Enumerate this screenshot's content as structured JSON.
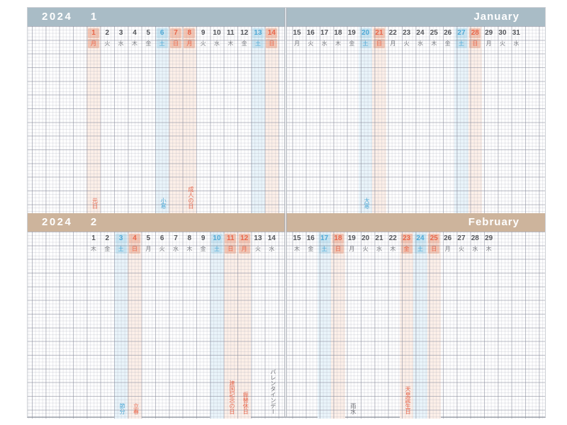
{
  "colors": {
    "jan_band": "#a9bcc6",
    "feb_band": "#cdb49c",
    "sun_text": "#e8664a",
    "sat_text": "#4fa9d6",
    "num_gray": "#54565b",
    "wd_gray": "#7b7d83",
    "ann_gray": "#6d6f75",
    "sun_stripe": "#fcefe8",
    "sat_stripe": "#e9f4fa",
    "sun_cell": "#f5c5b2",
    "sat_cell": "#c9e6f3"
  },
  "months": [
    {
      "year": "2024",
      "month_num": "1",
      "name_en": "January",
      "band_color": "#a9bcc6",
      "days": [
        {
          "n": "1",
          "w": "月",
          "t": "hol"
        },
        {
          "n": "2",
          "w": "火",
          "t": "wd"
        },
        {
          "n": "3",
          "w": "水",
          "t": "wd"
        },
        {
          "n": "4",
          "w": "木",
          "t": "wd"
        },
        {
          "n": "5",
          "w": "金",
          "t": "wd"
        },
        {
          "n": "6",
          "w": "土",
          "t": "sat"
        },
        {
          "n": "7",
          "w": "日",
          "t": "sun"
        },
        {
          "n": "8",
          "w": "月",
          "t": "hol"
        },
        {
          "n": "9",
          "w": "火",
          "t": "wd"
        },
        {
          "n": "10",
          "w": "水",
          "t": "wd"
        },
        {
          "n": "11",
          "w": "木",
          "t": "wd"
        },
        {
          "n": "12",
          "w": "金",
          "t": "wd"
        },
        {
          "n": "13",
          "w": "土",
          "t": "sat"
        },
        {
          "n": "14",
          "w": "日",
          "t": "sun"
        },
        {
          "n": "15",
          "w": "月",
          "t": "wd"
        },
        {
          "n": "16",
          "w": "火",
          "t": "wd"
        },
        {
          "n": "17",
          "w": "水",
          "t": "wd"
        },
        {
          "n": "18",
          "w": "木",
          "t": "wd"
        },
        {
          "n": "19",
          "w": "金",
          "t": "wd"
        },
        {
          "n": "20",
          "w": "土",
          "t": "sat"
        },
        {
          "n": "21",
          "w": "日",
          "t": "sun"
        },
        {
          "n": "22",
          "w": "月",
          "t": "wd"
        },
        {
          "n": "23",
          "w": "火",
          "t": "wd"
        },
        {
          "n": "24",
          "w": "水",
          "t": "wd"
        },
        {
          "n": "25",
          "w": "木",
          "t": "wd"
        },
        {
          "n": "26",
          "w": "金",
          "t": "wd"
        },
        {
          "n": "27",
          "w": "土",
          "t": "sat"
        },
        {
          "n": "28",
          "w": "日",
          "t": "sun"
        },
        {
          "n": "29",
          "w": "月",
          "t": "wd"
        },
        {
          "n": "30",
          "w": "火",
          "t": "wd"
        },
        {
          "n": "31",
          "w": "水",
          "t": "wd"
        }
      ],
      "annotations": [
        {
          "day": 1,
          "text": "元日",
          "color": "red"
        },
        {
          "day": 6,
          "text": "小寒",
          "color": "blue"
        },
        {
          "day": 8,
          "text": "成人の日",
          "color": "red"
        },
        {
          "day": 20,
          "text": "大寒",
          "color": "blue"
        }
      ]
    },
    {
      "year": "2024",
      "month_num": "2",
      "name_en": "February",
      "band_color": "#cdb49c",
      "days": [
        {
          "n": "1",
          "w": "木",
          "t": "wd"
        },
        {
          "n": "2",
          "w": "金",
          "t": "wd"
        },
        {
          "n": "3",
          "w": "土",
          "t": "sat"
        },
        {
          "n": "4",
          "w": "日",
          "t": "sun"
        },
        {
          "n": "5",
          "w": "月",
          "t": "wd"
        },
        {
          "n": "6",
          "w": "火",
          "t": "wd"
        },
        {
          "n": "7",
          "w": "水",
          "t": "wd"
        },
        {
          "n": "8",
          "w": "木",
          "t": "wd"
        },
        {
          "n": "9",
          "w": "金",
          "t": "wd"
        },
        {
          "n": "10",
          "w": "土",
          "t": "sat"
        },
        {
          "n": "11",
          "w": "日",
          "t": "sun"
        },
        {
          "n": "12",
          "w": "月",
          "t": "hol"
        },
        {
          "n": "13",
          "w": "火",
          "t": "wd"
        },
        {
          "n": "14",
          "w": "水",
          "t": "wd"
        },
        {
          "n": "15",
          "w": "木",
          "t": "wd"
        },
        {
          "n": "16",
          "w": "金",
          "t": "wd"
        },
        {
          "n": "17",
          "w": "土",
          "t": "sat"
        },
        {
          "n": "18",
          "w": "日",
          "t": "sun"
        },
        {
          "n": "19",
          "w": "月",
          "t": "wd"
        },
        {
          "n": "20",
          "w": "火",
          "t": "wd"
        },
        {
          "n": "21",
          "w": "水",
          "t": "wd"
        },
        {
          "n": "22",
          "w": "木",
          "t": "wd"
        },
        {
          "n": "23",
          "w": "金",
          "t": "hol"
        },
        {
          "n": "24",
          "w": "土",
          "t": "sat"
        },
        {
          "n": "25",
          "w": "日",
          "t": "sun"
        },
        {
          "n": "26",
          "w": "月",
          "t": "wd"
        },
        {
          "n": "27",
          "w": "火",
          "t": "wd"
        },
        {
          "n": "28",
          "w": "水",
          "t": "wd"
        },
        {
          "n": "29",
          "w": "木",
          "t": "wd"
        }
      ],
      "annotations": [
        {
          "day": 3,
          "text": "節分",
          "color": "blue"
        },
        {
          "day": 4,
          "text": "立春",
          "color": "red"
        },
        {
          "day": 11,
          "text": "建国記念の日",
          "color": "red"
        },
        {
          "day": 12,
          "text": "振替休日",
          "color": "red"
        },
        {
          "day": 14,
          "text": "バレンタインデー",
          "color": "gray"
        },
        {
          "day": 19,
          "text": "雨水",
          "color": "gray"
        },
        {
          "day": 23,
          "text": "天皇誕生日",
          "color": "red"
        }
      ]
    }
  ]
}
